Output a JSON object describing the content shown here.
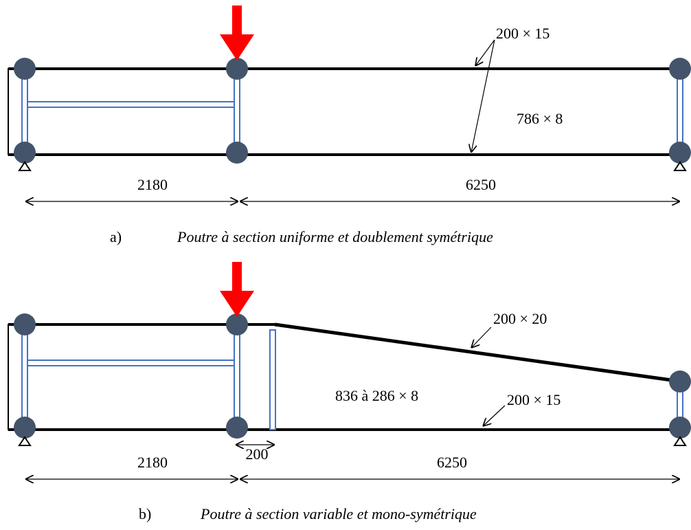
{
  "diagram_a": {
    "caption_letter": "a)",
    "caption_text": "Poutre à section uniforme et doublement symétrique",
    "flange_label": "200 × 15",
    "web_label": "786 × 8",
    "dim_left": "2180",
    "dim_right": "6250"
  },
  "diagram_b": {
    "caption_letter": "b)",
    "caption_text": "Poutre à section variable et mono-symétrique",
    "top_flange_label": "200 × 20",
    "web_label": "836 à 286 × 8",
    "bottom_flange_label": "200 × 15",
    "dim_small": "200",
    "dim_left": "2180",
    "dim_right": "6250"
  },
  "colors": {
    "node": "#44546a",
    "load_arrow": "#ff0000",
    "stiffener": "#4472c4",
    "beam": "#000000"
  }
}
